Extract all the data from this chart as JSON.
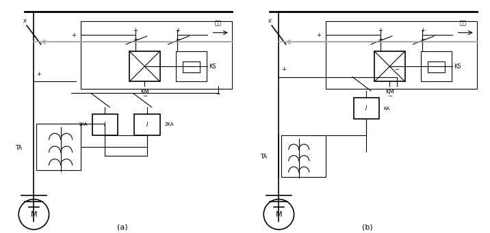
{
  "fig_width": 7.16,
  "fig_height": 3.41,
  "dpi": 100,
  "bg_color": "#ffffff",
  "line_color": "#000000",
  "gray_color": "#aaaaaa",
  "label_a": "(a)",
  "label_b": "(b)",
  "signal_text": "信号",
  "KM_text": "KM",
  "KS_text": "KS",
  "TA_text": "TA",
  "M_text": "M",
  "1KA_text": "1KA",
  "2KA_text": "2KA",
  "KA_text": "KA",
  "I_text": "I",
  "plus": "+",
  "minus": "−"
}
